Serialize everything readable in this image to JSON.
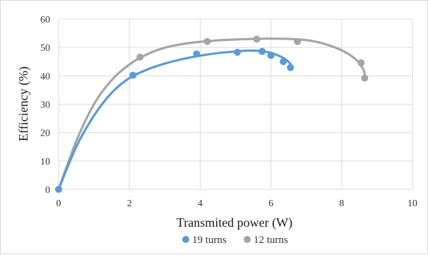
{
  "chart_data": {
    "type": "scatter",
    "title": "",
    "xlabel": "Transmited power (W)",
    "ylabel": "Efficiency (%)",
    "xlim": [
      0,
      10
    ],
    "ylim": [
      0,
      60
    ],
    "x_ticks": [
      "0",
      "2",
      "4",
      "6",
      "8",
      "10"
    ],
    "y_ticks": [
      "0",
      "10",
      "20",
      "30",
      "40",
      "50",
      "60"
    ],
    "grid": "vertical and horizontal major gridlines",
    "legend_position": "bottom",
    "series": [
      {
        "name": "19 turns",
        "color": "#5b9bd5",
        "points": [
          [
            0,
            0
          ],
          [
            2.1,
            40.2
          ],
          [
            3.9,
            47.7
          ],
          [
            5.05,
            48.3
          ],
          [
            5.75,
            48.6
          ],
          [
            6.0,
            47.2
          ],
          [
            6.35,
            45.0
          ],
          [
            6.55,
            42.9
          ]
        ],
        "trendline": [
          [
            0,
            0
          ],
          [
            0.5,
            15
          ],
          [
            1.0,
            26
          ],
          [
            1.5,
            34
          ],
          [
            2.0,
            39.2
          ],
          [
            2.5,
            42.2
          ],
          [
            3.0,
            44.3
          ],
          [
            3.5,
            45.9
          ],
          [
            4.0,
            47.1
          ],
          [
            4.5,
            48.0
          ],
          [
            5.0,
            48.6
          ],
          [
            5.4,
            48.9
          ],
          [
            5.8,
            48.6
          ],
          [
            6.1,
            47.7
          ],
          [
            6.4,
            45.9
          ],
          [
            6.55,
            44.3
          ]
        ]
      },
      {
        "name": "12 turns",
        "color": "#a5a5a5",
        "points": [
          [
            0,
            0
          ],
          [
            2.3,
            46.6
          ],
          [
            4.2,
            52.1
          ],
          [
            5.6,
            52.9
          ],
          [
            6.75,
            52.1
          ],
          [
            8.55,
            44.6
          ],
          [
            8.65,
            39.2
          ]
        ],
        "trendline": [
          [
            0,
            0
          ],
          [
            0.5,
            17
          ],
          [
            1.0,
            30
          ],
          [
            1.5,
            38.5
          ],
          [
            2.0,
            44
          ],
          [
            2.5,
            47.6
          ],
          [
            3.0,
            49.9
          ],
          [
            3.5,
            51.2
          ],
          [
            4.0,
            52.0
          ],
          [
            4.5,
            52.5
          ],
          [
            5.0,
            52.8
          ],
          [
            5.5,
            53.0
          ],
          [
            6.0,
            53.1
          ],
          [
            6.5,
            53.0
          ],
          [
            7.0,
            52.6
          ],
          [
            7.5,
            51.3
          ],
          [
            8.0,
            49.0
          ],
          [
            8.4,
            45.8
          ],
          [
            8.6,
            42.5
          ],
          [
            8.65,
            40.6
          ]
        ]
      }
    ]
  }
}
